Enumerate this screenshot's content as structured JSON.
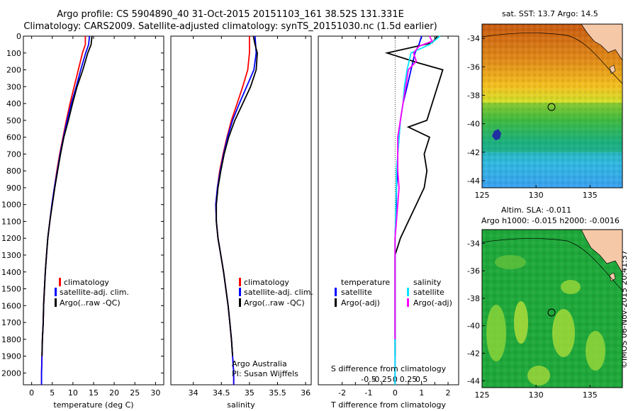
{
  "title": {
    "line1": "Argo profile: CS 5904890_40 31-Oct-2015 20151103_161 38.52S 131.331E",
    "line2": "Climatology: CARS2009. Satellite-adjusted climatology: synTS_20151030.nc (1.5d earlier)"
  },
  "colors": {
    "climatology": "#ff0000",
    "satellite": "#0000ff",
    "argo": "#000000",
    "sal_satellite": "#00e5ff",
    "sal_argo": "#ff00ff"
  },
  "legend_main": {
    "items": [
      "climatology",
      "satellite-adj. clim.",
      "Argo(..raw -QC)"
    ]
  },
  "legend_diff": {
    "temperature_header": "temperature",
    "salinity_header": "salinity",
    "satellite": "satellite",
    "argo": "Argo(-adj)"
  },
  "annotation": {
    "line1": "Argo Australia",
    "line2": "PI: Susan Wijffels"
  },
  "diff_top_label": "S difference from climatology",
  "map_sst": {
    "title": "sat. SST: 13.7 Argo: 14.5"
  },
  "map_sla": {
    "title1": "Altim. SLA: -0.011",
    "title2": "Argo h1000: -0.015 h2000: -0.0016"
  },
  "footer": "©IMOS 06-Nov-2015 20:41:37",
  "chart_data": [
    {
      "type": "line",
      "xlabel": "temperature (deg C)",
      "ylabel": "",
      "xlim": [
        -2,
        32
      ],
      "ylim": [
        2070,
        0
      ],
      "xticks": [
        0,
        5,
        10,
        15,
        20,
        25,
        30
      ],
      "yticks": [
        0,
        100,
        200,
        300,
        400,
        500,
        600,
        700,
        800,
        900,
        1000,
        1100,
        1200,
        1300,
        1400,
        1500,
        1600,
        1700,
        1800,
        1900,
        2000
      ],
      "series": [
        {
          "name": "climatology",
          "color": "#ff0000",
          "points": [
            [
              13.0,
              0
            ],
            [
              13.0,
              50
            ],
            [
              12.3,
              100
            ],
            [
              11.3,
              200
            ],
            [
              10.3,
              300
            ],
            [
              9.3,
              400
            ],
            [
              8.4,
              500
            ],
            [
              7.6,
              600
            ],
            [
              6.8,
              700
            ],
            [
              6.1,
              800
            ],
            [
              5.5,
              900
            ],
            [
              4.9,
              1000
            ],
            [
              4.4,
              1100
            ],
            [
              3.9,
              1200
            ],
            [
              3.6,
              1300
            ],
            [
              3.3,
              1400
            ],
            [
              3.1,
              1500
            ],
            [
              2.9,
              1600
            ],
            [
              2.8,
              1700
            ],
            [
              2.6,
              1800
            ],
            [
              2.5,
              1900
            ],
            [
              2.4,
              2000
            ],
            [
              2.4,
              2070
            ]
          ]
        },
        {
          "name": "satellite-adj. clim.",
          "color": "#0000ff",
          "points": [
            [
              14.0,
              0
            ],
            [
              13.8,
              50
            ],
            [
              13.1,
              100
            ],
            [
              11.9,
              200
            ],
            [
              10.8,
              300
            ],
            [
              9.6,
              400
            ],
            [
              8.6,
              500
            ],
            [
              7.7,
              600
            ],
            [
              6.9,
              700
            ],
            [
              6.2,
              800
            ],
            [
              5.5,
              900
            ],
            [
              4.9,
              1000
            ],
            [
              4.4,
              1100
            ],
            [
              3.9,
              1200
            ],
            [
              3.6,
              1300
            ],
            [
              3.3,
              1400
            ],
            [
              3.1,
              1500
            ],
            [
              2.9,
              1600
            ],
            [
              2.8,
              1700
            ],
            [
              2.6,
              1800
            ],
            [
              2.5,
              1900
            ],
            [
              2.4,
              2000
            ],
            [
              2.4,
              2070
            ]
          ]
        },
        {
          "name": "Argo(..raw -QC)",
          "color": "#000000",
          "points": [
            [
              14.6,
              0
            ],
            [
              14.4,
              50
            ],
            [
              13.6,
              100
            ],
            [
              12.4,
              200
            ],
            [
              11.0,
              300
            ],
            [
              9.9,
              400
            ],
            [
              8.9,
              500
            ],
            [
              7.8,
              600
            ],
            [
              7.0,
              700
            ],
            [
              6.3,
              800
            ],
            [
              5.6,
              900
            ],
            [
              5.0,
              1000
            ],
            [
              4.4,
              1100
            ],
            [
              3.9,
              1200
            ],
            [
              3.6,
              1300
            ],
            [
              3.3,
              1400
            ],
            [
              3.1,
              1500
            ],
            [
              2.9,
              1600
            ],
            [
              2.8,
              1700
            ],
            [
              2.6,
              1800
            ],
            [
              2.5,
              1900
            ]
          ]
        }
      ]
    },
    {
      "type": "line",
      "xlabel": "salinity",
      "xlim": [
        33.6,
        36.1
      ],
      "ylim": [
        2070,
        0
      ],
      "xticks": [
        34,
        34.5,
        35,
        35.5,
        36
      ],
      "xticklabels": [
        "34",
        "34.5",
        "35",
        "35.5",
        "36"
      ],
      "series": [
        {
          "name": "climatology",
          "color": "#ff0000",
          "points": [
            [
              35.0,
              0
            ],
            [
              35.0,
              100
            ],
            [
              34.97,
              200
            ],
            [
              34.88,
              300
            ],
            [
              34.78,
              400
            ],
            [
              34.68,
              500
            ],
            [
              34.6,
              600
            ],
            [
              34.53,
              700
            ],
            [
              34.47,
              800
            ],
            [
              34.43,
              900
            ],
            [
              34.4,
              1000
            ],
            [
              34.41,
              1100
            ],
            [
              34.44,
              1200
            ],
            [
              34.49,
              1300
            ],
            [
              34.54,
              1400
            ],
            [
              34.58,
              1500
            ],
            [
              34.62,
              1600
            ],
            [
              34.65,
              1700
            ],
            [
              34.68,
              1800
            ],
            [
              34.7,
              1900
            ],
            [
              34.72,
              2000
            ],
            [
              34.72,
              2070
            ]
          ]
        },
        {
          "name": "satellite-adj. clim.",
          "color": "#0000ff",
          "points": [
            [
              35.1,
              0
            ],
            [
              35.12,
              100
            ],
            [
              35.08,
              200
            ],
            [
              34.95,
              300
            ],
            [
              34.82,
              400
            ],
            [
              34.7,
              500
            ],
            [
              34.61,
              600
            ],
            [
              34.54,
              700
            ],
            [
              34.48,
              800
            ],
            [
              34.43,
              900
            ],
            [
              34.4,
              1000
            ],
            [
              34.41,
              1100
            ],
            [
              34.44,
              1200
            ],
            [
              34.49,
              1300
            ],
            [
              34.54,
              1400
            ],
            [
              34.58,
              1500
            ],
            [
              34.62,
              1600
            ],
            [
              34.65,
              1700
            ],
            [
              34.68,
              1800
            ],
            [
              34.7,
              1900
            ],
            [
              34.72,
              2000
            ],
            [
              34.72,
              2070
            ]
          ]
        },
        {
          "name": "Argo(..raw -QC)",
          "color": "#000000",
          "points": [
            [
              35.07,
              0
            ],
            [
              35.1,
              50
            ],
            [
              35.14,
              100
            ],
            [
              35.12,
              200
            ],
            [
              35.02,
              300
            ],
            [
              34.88,
              400
            ],
            [
              34.74,
              500
            ],
            [
              34.63,
              600
            ],
            [
              34.55,
              700
            ],
            [
              34.49,
              800
            ],
            [
              34.44,
              900
            ],
            [
              34.41,
              1000
            ],
            [
              34.41,
              1100
            ],
            [
              34.44,
              1200
            ],
            [
              34.49,
              1300
            ],
            [
              34.54,
              1400
            ],
            [
              34.58,
              1500
            ],
            [
              34.62,
              1600
            ],
            [
              34.65,
              1700
            ],
            [
              34.68,
              1800
            ],
            [
              34.7,
              1900
            ]
          ]
        }
      ]
    },
    {
      "type": "line",
      "xlabel": "T difference from climatology",
      "xlabel_top": "S difference from climatology",
      "xlim": [
        -2.9,
        2.4
      ],
      "ylim": [
        2070,
        0
      ],
      "xticks": [
        -2,
        -1.5,
        -1,
        -0.5,
        0,
        0.5,
        1,
        1.5,
        2
      ],
      "xticklabels": [
        "-2",
        "",
        "-1",
        "",
        "0",
        "",
        "1",
        "",
        "2"
      ],
      "top_xticks": [
        -1,
        -0.5,
        0,
        0.5,
        1
      ],
      "top_xticklabels": [
        "-0.5",
        "-0.25",
        "0",
        "0.25",
        "0.5"
      ],
      "series": [
        {
          "name": "temperature satellite",
          "color": "#0000ff",
          "points": [
            [
              1.0,
              0
            ],
            [
              0.9,
              50
            ],
            [
              0.75,
              100
            ],
            [
              0.6,
              200
            ],
            [
              0.45,
              300
            ],
            [
              0.3,
              400
            ],
            [
              0.2,
              500
            ],
            [
              0.15,
              600
            ],
            [
              0.1,
              700
            ],
            [
              0.1,
              800
            ],
            [
              0.05,
              900
            ],
            [
              0.05,
              1000
            ],
            [
              0.02,
              1100
            ],
            [
              0,
              1200
            ],
            [
              0,
              1400
            ],
            [
              0,
              1600
            ],
            [
              0,
              1800
            ],
            [
              0,
              2000
            ],
            [
              0,
              2070
            ]
          ]
        },
        {
          "name": "temperature Argo(-adj)",
          "color": "#000000",
          "points": [
            [
              1.6,
              0
            ],
            [
              1.4,
              40
            ],
            [
              -0.3,
              100
            ],
            [
              0.9,
              160
            ],
            [
              1.8,
              200
            ],
            [
              1.6,
              300
            ],
            [
              1.4,
              400
            ],
            [
              1.2,
              500
            ],
            [
              0.5,
              540
            ],
            [
              1.3,
              600
            ],
            [
              1.1,
              700
            ],
            [
              1.2,
              800
            ],
            [
              1.1,
              900
            ],
            [
              0.8,
              1000
            ],
            [
              0.5,
              1100
            ],
            [
              0.2,
              1200
            ],
            [
              0,
              1300
            ],
            [
              0,
              1500
            ],
            [
              0,
              1700
            ],
            [
              0,
              1900
            ]
          ]
        },
        {
          "name": "salinity satellite",
          "color": "#00e5ff",
          "points": [
            [
              1.7,
              0
            ],
            [
              1.3,
              50
            ],
            [
              0.6,
              100
            ],
            [
              0.45,
              200
            ],
            [
              0.35,
              300
            ],
            [
              0.3,
              400
            ],
            [
              0.2,
              500
            ],
            [
              0.15,
              600
            ],
            [
              0.1,
              700
            ],
            [
              0.05,
              800
            ],
            [
              0.05,
              900
            ],
            [
              0.03,
              1000
            ],
            [
              0.02,
              1100
            ],
            [
              0,
              1200
            ],
            [
              0,
              1400
            ],
            [
              0,
              1600
            ],
            [
              0,
              1800
            ],
            [
              0,
              2000
            ],
            [
              0,
              2070
            ]
          ]
        },
        {
          "name": "salinity Argo(-adj)",
          "color": "#ff00ff",
          "points": [
            [
              1.3,
              0
            ],
            [
              1.4,
              30
            ],
            [
              0.9,
              60
            ],
            [
              0.7,
              100
            ],
            [
              0.8,
              150
            ],
            [
              0.5,
              200
            ],
            [
              0.4,
              300
            ],
            [
              0.3,
              400
            ],
            [
              0.2,
              500
            ],
            [
              0.1,
              600
            ],
            [
              0.1,
              800
            ],
            [
              0.15,
              900
            ],
            [
              0.1,
              1000
            ],
            [
              0.05,
              1100
            ],
            [
              0,
              1200
            ],
            [
              0,
              1400
            ],
            [
              0,
              1600
            ],
            [
              0,
              1800
            ]
          ]
        }
      ]
    },
    {
      "type": "heatmap",
      "title": "sat. SST: 13.7 Argo: 14.5",
      "xlim": [
        125,
        138
      ],
      "ylim": [
        -44.5,
        -33
      ],
      "xticks": [
        125,
        130,
        135
      ],
      "yticks": [
        -34,
        -36,
        -38,
        -40,
        -42,
        -44
      ],
      "argo_position": [
        131.331,
        -38.52
      ]
    },
    {
      "type": "heatmap",
      "title": "Altim. SLA: -0.011",
      "subtitle": "Argo h1000: -0.015 h2000: -0.0016",
      "xlim": [
        125,
        138
      ],
      "ylim": [
        -44.5,
        -33
      ],
      "xticks": [
        125,
        130,
        135
      ],
      "yticks": [
        -34,
        -36,
        -38,
        -40,
        -42,
        -44
      ],
      "argo_position": [
        131.331,
        -38.52
      ]
    }
  ]
}
